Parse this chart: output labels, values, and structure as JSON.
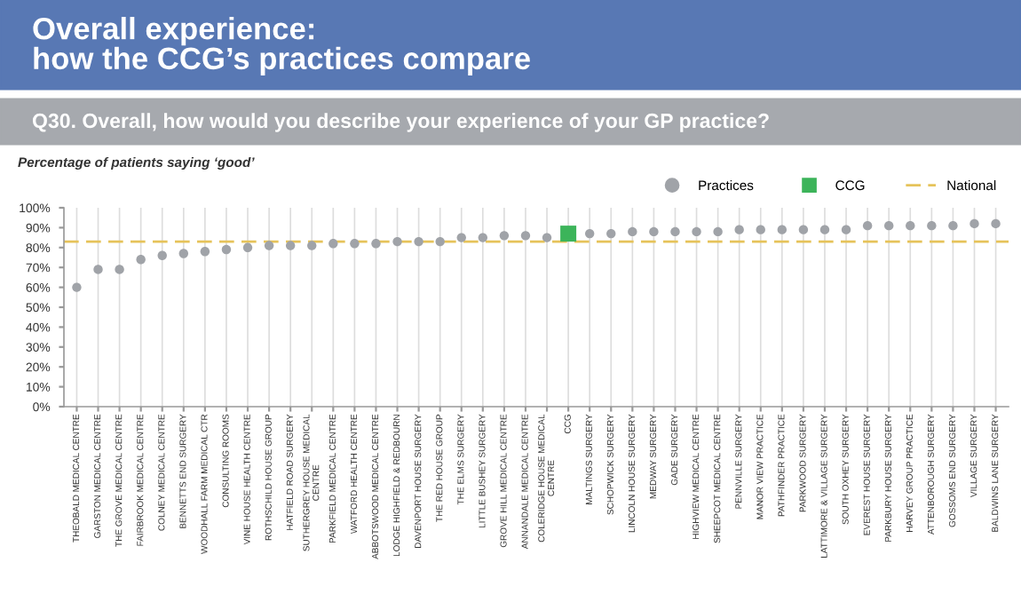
{
  "chart_data": {
    "type": "scatter",
    "title": "Overall experience:\nhow the CCG’s practices compare",
    "subtitle": "Q30. Overall, how would you describe your experience of your GP practice?",
    "ylabel": "Percentage of patients saying ‘good’",
    "categories": [
      "THEOBALD MEDICAL CENTRE",
      "GARSTON MEDICAL CENTRE",
      "THE GROVE MEDICAL CENTRE",
      "FAIRBROOK MEDICAL CENTRE",
      "COLNEY MEDICAL CENTRE",
      "BENNETTS END SURGERY",
      "WOODHALL FARM MEDICAL CTR",
      "CONSULTING ROOMS",
      "VINE HOUSE HEALTH CENTRE",
      "ROTHSCHILD HOUSE GROUP",
      "HATFIELD ROAD SURGERY",
      "SUTHERGREY HOUSE MEDICAL CENTRE",
      "PARKFIELD MEDICAL CENTRE",
      "WATFORD HEALTH CENTRE",
      "ABBOTSWOOD MEDICAL CENTRE",
      "LODGE HIGHFIELD & REDBOURN",
      "DAVENPORT HOUSE SURGERY",
      "THE RED HOUSE GROUP",
      "THE ELMS SURGERY",
      "LITTLE BUSHEY SURGERY",
      "GROVE HILL MEDICAL CENTRE",
      "ANNANDALE MEDICAL CENTRE",
      "COLERIDGE HOUSE MEDICAL CENTRE",
      "CCG",
      "MALTINGS SURGERY",
      "SCHOPWICK SURGERY",
      "LINCOLN HOUSE SURGERY",
      "MEDWAY SURGERY",
      "GADE SURGERY",
      "HIGHVIEW MEDICAL CENTRE",
      "SHEEPCOT MEDICAL CENTRE",
      "PENNVILLE SURGERY",
      "MANOR VIEW PRACTICE",
      "PATHFINDER PRACTICE",
      "PARKWOOD SURGERY",
      "LATTIMORE & VILLAGE SURGERY",
      "SOUTH OXHEY SURGERY",
      "EVEREST HOUSE SURGERY",
      "PARKBURY HOUSE SURGERY",
      "HARVEY GROUP PRACTICE",
      "ATTENBOROUGH SURGERY",
      "GOSSOMS END SURGERY",
      "VILLAGE SURGERY",
      "BALDWINS LANE SURGERY"
    ],
    "series": [
      {
        "name": "Practices",
        "color": "#a0a3a8",
        "marker": "circle",
        "values": [
          60,
          69,
          69,
          74,
          76,
          77,
          78,
          79,
          80,
          81,
          81,
          81,
          82,
          82,
          82,
          83,
          83,
          83,
          85,
          85,
          86,
          86,
          85,
          null,
          87,
          87,
          88,
          88,
          88,
          88,
          88,
          89,
          89,
          89,
          89,
          89,
          89,
          91,
          91,
          91,
          91,
          91,
          92,
          92
        ]
      },
      {
        "name": "CCG",
        "color": "#3cb45a",
        "marker": "square",
        "values": [
          null,
          null,
          null,
          null,
          null,
          null,
          null,
          null,
          null,
          null,
          null,
          null,
          null,
          null,
          null,
          null,
          null,
          null,
          null,
          null,
          null,
          null,
          null,
          87,
          null,
          null,
          null,
          null,
          null,
          null,
          null,
          null,
          null,
          null,
          null,
          null,
          null,
          null,
          null,
          null,
          null,
          null,
          null,
          null
        ]
      }
    ],
    "ref_lines": [
      {
        "axis": "y",
        "value": 83,
        "label": "National",
        "color": "#e6c35a",
        "line_style": "dashed"
      }
    ],
    "ylim": [
      0,
      100
    ],
    "yticks": [
      {
        "value": 0,
        "label": "0%"
      },
      {
        "value": 10,
        "label": "10%"
      },
      {
        "value": 20,
        "label": "20%"
      },
      {
        "value": 30,
        "label": "30%"
      },
      {
        "value": 40,
        "label": "40%"
      },
      {
        "value": 50,
        "label": "50%"
      },
      {
        "value": 60,
        "label": "60%"
      },
      {
        "value": 70,
        "label": "70%"
      },
      {
        "value": 80,
        "label": "80%"
      },
      {
        "value": 90,
        "label": "90%"
      },
      {
        "value": 100,
        "label": "100%"
      }
    ],
    "grid": "x",
    "legend": "top right"
  }
}
